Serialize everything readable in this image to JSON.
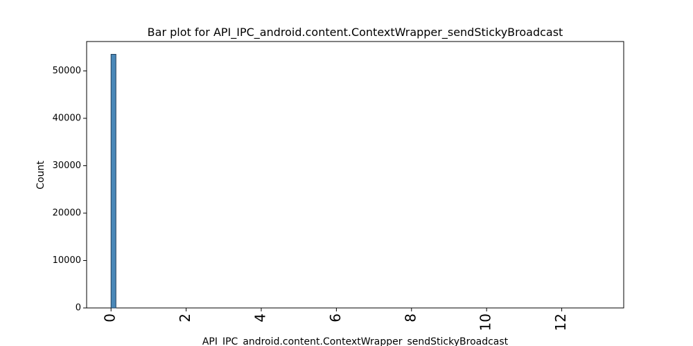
{
  "chart_data": {
    "type": "bar",
    "title": "Bar plot for API_IPC_android.content.ContextWrapper_sendStickyBroadcast",
    "xlabel": "API_IPC_android.content.ContextWrapper_sendStickyBroadcast",
    "ylabel": "Count",
    "xlim": [
      -0.65,
      13.65
    ],
    "ylim": [
      0,
      56200
    ],
    "xticks": [
      0,
      2,
      4,
      6,
      8,
      10,
      12
    ],
    "yticks": [
      0,
      10000,
      20000,
      30000,
      40000,
      50000
    ],
    "x_tick_labels": [
      "0",
      "2",
      "4",
      "6",
      "8",
      "10",
      "12"
    ],
    "y_tick_labels": [
      "0",
      "10000",
      "20000",
      "30000",
      "40000",
      "50000"
    ],
    "bars": [
      {
        "x_start": 0.0,
        "x_end": 0.13,
        "count": 53500
      }
    ],
    "bar_color": "#4a88b8",
    "bar_edge_color": "#1f3f5c",
    "grid": false,
    "legend": "none"
  }
}
